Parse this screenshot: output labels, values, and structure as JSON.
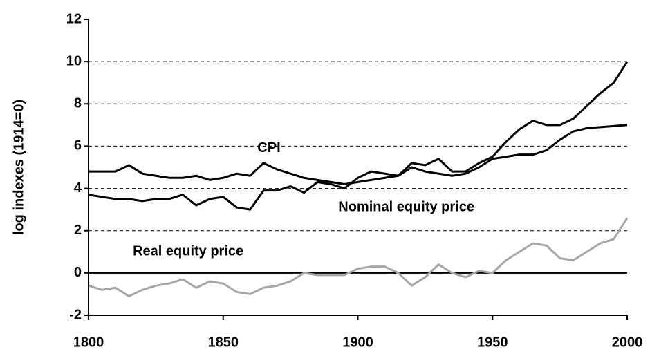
{
  "chart_data": {
    "type": "line",
    "y_label": "log indexes (1914=0)",
    "x": [
      1800,
      1805,
      1810,
      1815,
      1820,
      1825,
      1830,
      1835,
      1840,
      1845,
      1850,
      1855,
      1860,
      1865,
      1870,
      1875,
      1880,
      1885,
      1890,
      1895,
      1900,
      1905,
      1910,
      1915,
      1920,
      1925,
      1930,
      1935,
      1940,
      1945,
      1950,
      1955,
      1960,
      1965,
      1970,
      1975,
      1980,
      1985,
      1990,
      1995,
      2000
    ],
    "series": [
      {
        "name": "CPI",
        "color": "#000000",
        "values": [
          4.8,
          4.8,
          4.8,
          5.1,
          4.7,
          4.6,
          4.5,
          4.5,
          4.6,
          4.4,
          4.5,
          4.7,
          4.6,
          5.2,
          4.9,
          4.7,
          4.5,
          4.4,
          4.3,
          4.2,
          4.3,
          4.4,
          4.5,
          4.6,
          5.0,
          4.8,
          4.7,
          4.6,
          4.7,
          5.0,
          5.4,
          5.5,
          5.6,
          5.6,
          5.8,
          6.3,
          6.7,
          6.85,
          6.9,
          6.95,
          7.0
        ]
      },
      {
        "name": "Nominal equity price",
        "color": "#000000",
        "values": [
          3.7,
          3.6,
          3.5,
          3.5,
          3.4,
          3.5,
          3.5,
          3.7,
          3.2,
          3.5,
          3.6,
          3.1,
          3.0,
          3.9,
          3.9,
          4.1,
          3.8,
          4.3,
          4.2,
          4.0,
          4.5,
          4.8,
          4.7,
          4.6,
          5.2,
          5.1,
          5.4,
          4.8,
          4.8,
          5.2,
          5.5,
          6.2,
          6.8,
          7.2,
          7.0,
          7.0,
          7.3,
          7.9,
          8.5,
          9.0,
          10.0
        ]
      },
      {
        "name": "Real equity price",
        "color": "#a6a6a6",
        "values": [
          -0.6,
          -0.8,
          -0.7,
          -1.1,
          -0.8,
          -0.6,
          -0.5,
          -0.3,
          -0.7,
          -0.4,
          -0.5,
          -0.9,
          -1.0,
          -0.7,
          -0.6,
          -0.4,
          0.0,
          -0.1,
          -0.1,
          -0.1,
          0.2,
          0.3,
          0.3,
          0.0,
          -0.6,
          -0.2,
          0.4,
          0.0,
          -0.2,
          0.1,
          0.0,
          0.6,
          1.0,
          1.4,
          1.3,
          0.7,
          0.6,
          1.0,
          1.4,
          1.6,
          2.6
        ]
      }
    ],
    "xlim": [
      1800,
      2000
    ],
    "xticks": [
      1800,
      1850,
      1900,
      1950,
      2000
    ],
    "ylim": [
      -2,
      12
    ],
    "yticks": [
      -2,
      0,
      2,
      4,
      6,
      8,
      10,
      12
    ],
    "grid": true
  }
}
